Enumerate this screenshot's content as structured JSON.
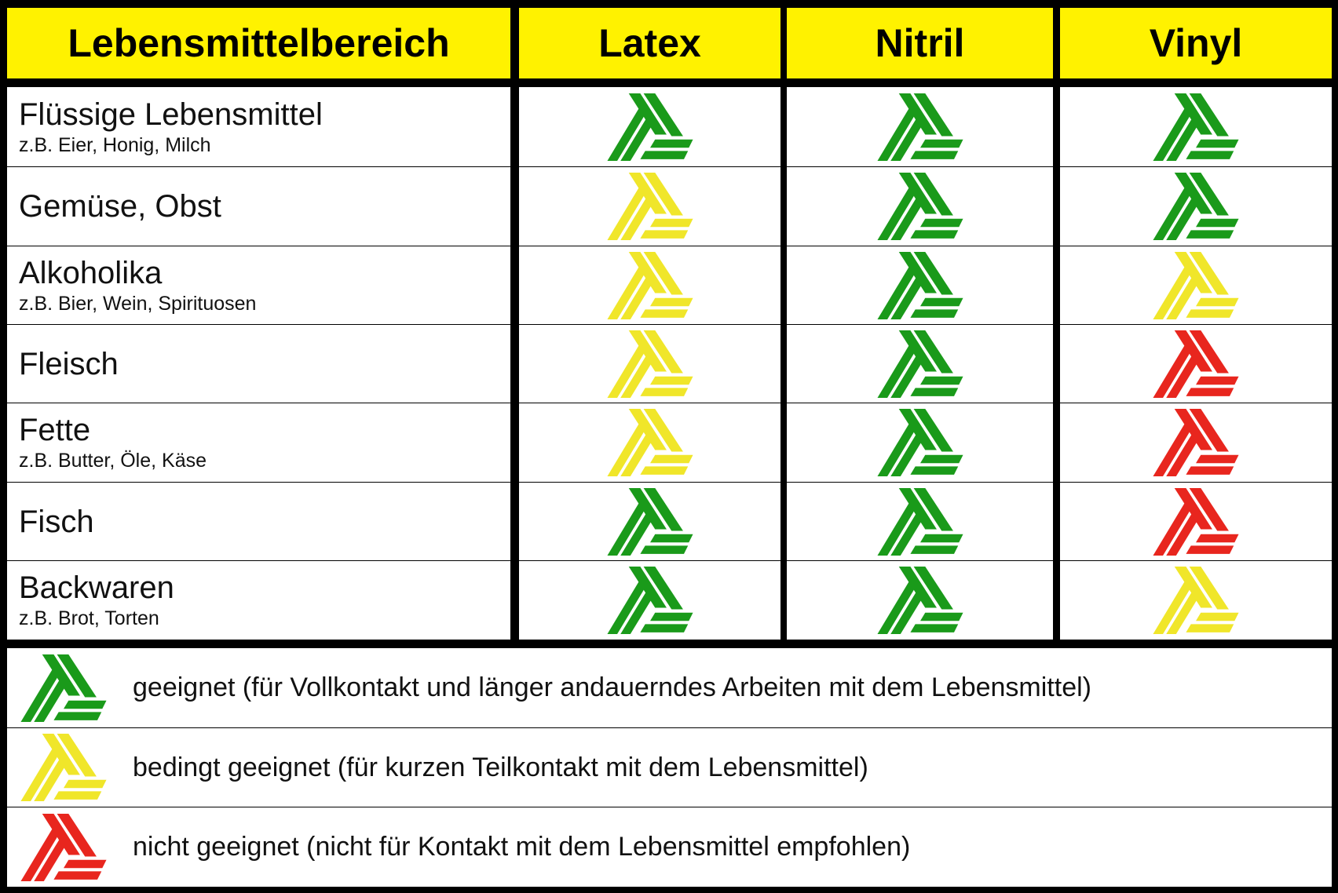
{
  "colors": {
    "green": "#1a9a1a",
    "yellow": "#f0e62a",
    "red": "#e8261e",
    "header": "#fff200"
  },
  "headers": [
    "Lebensmittelbereich",
    "Latex",
    "Nitril",
    "Vinyl"
  ],
  "rows": [
    {
      "label": "Flüssige Lebensmittel",
      "sub": "z.B. Eier, Honig, Milch",
      "ratings": [
        "green",
        "green",
        "green"
      ]
    },
    {
      "label": "Gemüse, Obst",
      "sub": "",
      "ratings": [
        "yellow",
        "green",
        "green"
      ]
    },
    {
      "label": "Alkoholika",
      "sub": "z.B. Bier, Wein, Spirituosen",
      "ratings": [
        "yellow",
        "green",
        "yellow"
      ]
    },
    {
      "label": "Fleisch",
      "sub": "",
      "ratings": [
        "yellow",
        "green",
        "red"
      ]
    },
    {
      "label": "Fette",
      "sub": "z.B. Butter, Öle, Käse",
      "ratings": [
        "yellow",
        "green",
        "red"
      ]
    },
    {
      "label": "Fisch",
      "sub": "",
      "ratings": [
        "green",
        "green",
        "red"
      ]
    },
    {
      "label": "Backwaren",
      "sub": "z.B. Brot, Torten",
      "ratings": [
        "green",
        "green",
        "yellow"
      ]
    }
  ],
  "legend": [
    {
      "color": "green",
      "text": "geeignet (für Vollkontakt und länger andauerndes Arbeiten mit dem Lebensmittel)"
    },
    {
      "color": "yellow",
      "text": "bedingt geeignet (für kurzen Teilkontakt mit dem Lebensmittel)"
    },
    {
      "color": "red",
      "text": "nicht geeignet (nicht für Kontakt mit dem Lebensmittel empfohlen)"
    }
  ]
}
